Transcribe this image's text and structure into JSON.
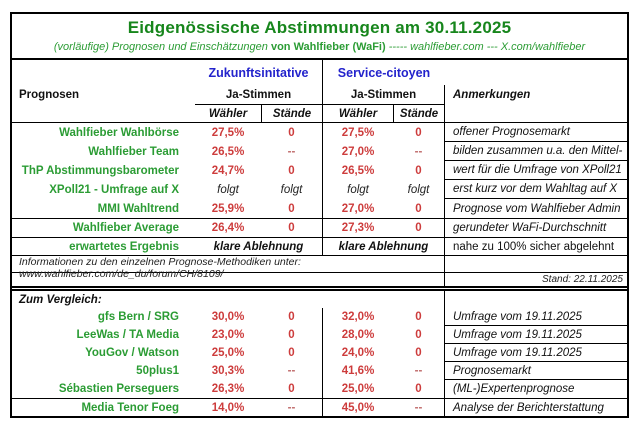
{
  "title": "Eidgenössische Abstimmungen am 30.11.2025",
  "subtitle": {
    "lead": "(vorläufige) Prognosen und Einschätzungen",
    "brand": "von Wahlfieber (WaFi)",
    "tail": "----- wahlfieber.com --- X.com/wahlfieber"
  },
  "header": {
    "col_prognosen": "Prognosen",
    "group1": "Zukunftsinitative",
    "group2": "Service-citoyen",
    "ja_stimmen_1": "Ja-Stimmen",
    "ja_stimmen_2": "Ja-Stimmen",
    "sub_waehler": "Wähler",
    "sub_staende": "Stände",
    "col_anmerkungen": "Anmerkungen"
  },
  "main_rows": [
    {
      "label": "Wahlfieber Wahlbörse",
      "w1": "27,5%",
      "s1": "0",
      "w2": "27,5%",
      "s2": "0",
      "note": "offener Prognosemarkt",
      "note_underline": true
    },
    {
      "label": "Wahlfieber Team",
      "w1": "26,5%",
      "s1": "--",
      "w2": "27,0%",
      "s2": "--",
      "note": "bilden zusammen u.a. den Mittel-",
      "note_underline": true
    },
    {
      "label": "ThP Abstimmungsbarometer",
      "w1": "24,7%",
      "s1": "0",
      "w2": "26,5%",
      "s2": "0",
      "note": "wert für die Umfrage von XPoll21",
      "note_underline": true
    },
    {
      "label": "XPoll21 - Umfrage auf X",
      "w1": "folgt",
      "s1": "folgt",
      "w2": "folgt",
      "s2": "folgt",
      "note": "erst kurz vor dem Wahltag auf X",
      "note_underline": true
    },
    {
      "label": "MMI Wahltrend",
      "w1": "25,9%",
      "s1": "0",
      "w2": "27,0%",
      "s2": "0",
      "note": "Prognose vom Wahlfieber Admin"
    },
    {
      "label": "Wahlfieber Average",
      "w1": "26,4%",
      "s1": "0",
      "w2": "27,3%",
      "s2": "0",
      "note": "gerundeter WaFi-Durchschnitt",
      "separator_above": true
    }
  ],
  "expected_row": {
    "label": "erwartetes Ergebnis",
    "group1_value": "klare Ablehnung",
    "group2_value": "klare Ablehnung",
    "note": "nahe zu 100% sicher abgelehnt"
  },
  "info": {
    "methods_note": "Informationen zu den einzelnen Prognose-Methodiken unter: www.wahlfieber.com/de_du/forum/CH/8109/",
    "stand": "Stand: 22.11.2025"
  },
  "compare": {
    "heading": "Zum Vergleich:",
    "rows": [
      {
        "label": "gfs Bern / SRG",
        "w1": "30,0%",
        "s1": "0",
        "w2": "32,0%",
        "s2": "0",
        "note": "Umfrage vom 19.11.2025",
        "note_underline": true
      },
      {
        "label": "LeeWas / TA Media",
        "w1": "23,0%",
        "s1": "0",
        "w2": "28,0%",
        "s2": "0",
        "note": "Umfrage vom 19.11.2025",
        "note_underline": true
      },
      {
        "label": "YouGov / Watson",
        "w1": "25,0%",
        "s1": "0",
        "w2": "24,0%",
        "s2": "0",
        "note": "Umfrage vom 19.11.2025",
        "note_underline": true
      },
      {
        "label": "50plus1",
        "w1": "30,3%",
        "s1": "--",
        "w2": "41,6%",
        "s2": "--",
        "note": "Prognosemarkt",
        "note_underline": true
      },
      {
        "label": "Sébastien Perseguers",
        "w1": "26,3%",
        "s1": "0",
        "w2": "25,0%",
        "s2": "0",
        "note": "(ML-)Expertenprognose"
      },
      {
        "label": "Media Tenor Foeg",
        "w1": "14,0%",
        "s1": "--",
        "w2": "45,0%",
        "s2": "--",
        "note": "Analyse der Berichterstattung",
        "separator_above": true,
        "tall": true
      }
    ]
  },
  "colors": {
    "green_title": "#17861c",
    "green_label": "#2b9c34",
    "blue": "#2323cc",
    "red": "#cd3c3c",
    "dash_red": "#c06c6c",
    "border": "#000000",
    "background": "#ffffff"
  }
}
